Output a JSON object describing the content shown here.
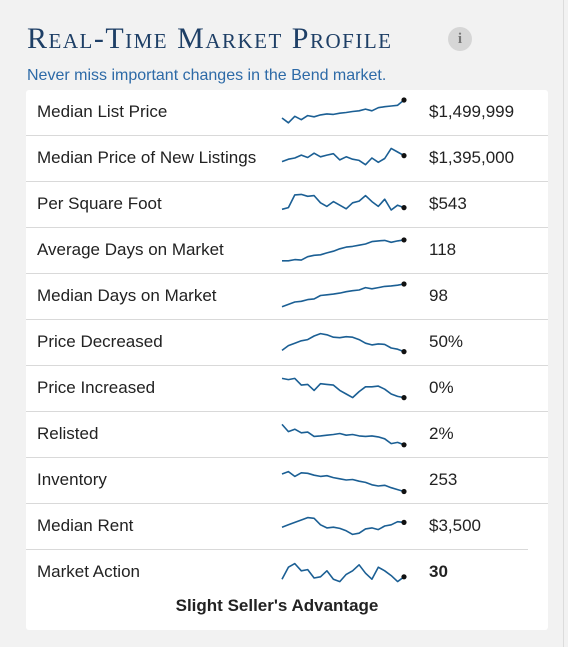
{
  "header": {
    "title": "Real-Time Market Profile",
    "info_icon": "info-icon",
    "subtitle": "Never miss important changes in the Bend market."
  },
  "colors": {
    "title": "#1e3f66",
    "subtitle": "#2d6aa7",
    "sparkline": "#1b5f94"
  },
  "rows": [
    {
      "label": "Median List Price",
      "value": "$1,499,999",
      "bold": false,
      "trend": [
        0.25,
        0.05,
        0.32,
        0.18,
        0.35,
        0.3,
        0.38,
        0.42,
        0.4,
        0.45,
        0.48,
        0.52,
        0.55,
        0.62,
        0.55,
        0.68,
        0.72,
        0.75,
        0.78,
        1.0
      ]
    },
    {
      "label": "Median Price of New Listings",
      "value": "$1,395,000",
      "bold": false,
      "trend": [
        0.35,
        0.45,
        0.5,
        0.62,
        0.52,
        0.7,
        0.55,
        0.62,
        0.68,
        0.42,
        0.55,
        0.45,
        0.4,
        0.22,
        0.5,
        0.32,
        0.48,
        0.9,
        0.75,
        0.6
      ]
    },
    {
      "label": "Per Square Foot",
      "value": "$543",
      "bold": false,
      "trend": [
        0.28,
        0.35,
        0.88,
        0.9,
        0.82,
        0.85,
        0.55,
        0.4,
        0.6,
        0.45,
        0.3,
        0.55,
        0.62,
        0.85,
        0.6,
        0.4,
        0.7,
        0.25,
        0.45,
        0.35
      ]
    },
    {
      "label": "Average Days on Market",
      "value": "118",
      "bold": false,
      "trend": [
        0.05,
        0.05,
        0.1,
        0.08,
        0.22,
        0.28,
        0.3,
        0.38,
        0.45,
        0.55,
        0.62,
        0.65,
        0.7,
        0.75,
        0.85,
        0.88,
        0.9,
        0.82,
        0.88,
        0.92
      ]
    },
    {
      "label": "Median Days on Market",
      "value": "98",
      "bold": false,
      "trend": [
        0.05,
        0.15,
        0.25,
        0.28,
        0.35,
        0.38,
        0.52,
        0.55,
        0.58,
        0.62,
        0.68,
        0.72,
        0.75,
        0.85,
        0.8,
        0.85,
        0.9,
        0.92,
        0.95,
        1.0
      ]
    },
    {
      "label": "Price Decreased",
      "value": "50%",
      "bold": false,
      "trend": [
        0.15,
        0.35,
        0.45,
        0.55,
        0.6,
        0.75,
        0.85,
        0.8,
        0.7,
        0.68,
        0.72,
        0.7,
        0.6,
        0.45,
        0.38,
        0.42,
        0.4,
        0.25,
        0.2,
        0.1
      ]
    },
    {
      "label": "Price Increased",
      "value": "0%",
      "bold": false,
      "trend": [
        0.9,
        0.85,
        0.9,
        0.62,
        0.65,
        0.4,
        0.68,
        0.65,
        0.62,
        0.4,
        0.25,
        0.1,
        0.35,
        0.55,
        0.55,
        0.58,
        0.45,
        0.25,
        0.15,
        0.1
      ]
    },
    {
      "label": "Relisted",
      "value": "2%",
      "bold": false,
      "trend": [
        0.9,
        0.6,
        0.7,
        0.55,
        0.58,
        0.4,
        0.42,
        0.45,
        0.48,
        0.52,
        0.45,
        0.48,
        0.42,
        0.4,
        0.42,
        0.38,
        0.3,
        0.1,
        0.15,
        0.05
      ]
    },
    {
      "label": "Inventory",
      "value": "253",
      "bold": false,
      "trend": [
        0.75,
        0.85,
        0.65,
        0.8,
        0.78,
        0.7,
        0.65,
        0.68,
        0.6,
        0.55,
        0.5,
        0.52,
        0.45,
        0.4,
        0.3,
        0.25,
        0.28,
        0.18,
        0.1,
        0.02
      ]
    },
    {
      "label": "Median Rent",
      "value": "$3,500",
      "bold": false,
      "trend": [
        0.45,
        0.55,
        0.65,
        0.75,
        0.85,
        0.82,
        0.55,
        0.42,
        0.45,
        0.4,
        0.3,
        0.15,
        0.2,
        0.38,
        0.42,
        0.35,
        0.5,
        0.55,
        0.68,
        0.65
      ]
    },
    {
      "label": "Market Action",
      "value": "30",
      "bold": true,
      "trend": [
        0.2,
        0.7,
        0.85,
        0.55,
        0.6,
        0.25,
        0.3,
        0.55,
        0.2,
        0.1,
        0.4,
        0.55,
        0.8,
        0.45,
        0.2,
        0.7,
        0.55,
        0.35,
        0.1,
        0.3
      ]
    }
  ],
  "market_action_rating": "Slight Seller's Advantage"
}
